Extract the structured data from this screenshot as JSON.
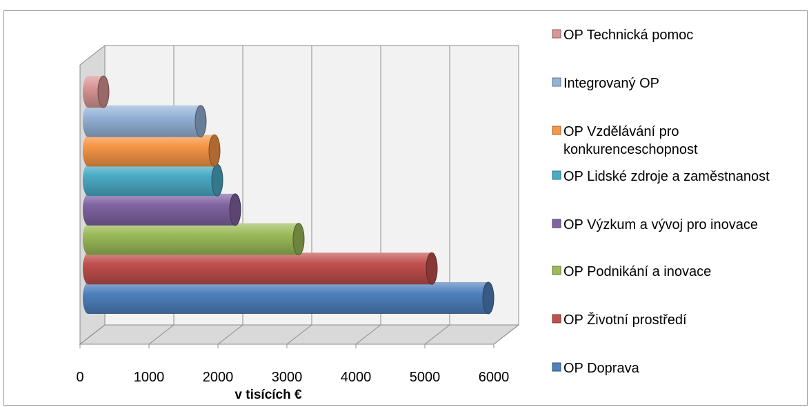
{
  "chart_data": {
    "type": "bar",
    "orientation": "horizontal",
    "style": "3d-cylinder",
    "categories": [
      "OP Doprava",
      "OP Životní prostředí",
      "OP Podnikání a inovace",
      "OP Výzkum a vývoj pro inovace",
      "OP Lidské zdroje a zaměstnanost",
      "OP Vzdělávání pro konkurenceschopnost",
      "Integrovaný OP",
      "OP Technická pomoc"
    ],
    "values": [
      5900,
      5080,
      3150,
      2230,
      1970,
      1930,
      1730,
      320
    ],
    "colors": [
      "#4f81bd",
      "#c0504d",
      "#9bbb59",
      "#8064a2",
      "#4bacc6",
      "#f79646",
      "#95b3d7",
      "#d99694"
    ],
    "xlabel": "v tisících €",
    "xlim": [
      0,
      6000
    ],
    "xticks": [
      "0",
      "1000",
      "2000",
      "3000",
      "4000",
      "5000",
      "6000"
    ],
    "grid": true,
    "legend_position": "right",
    "legend": [
      "OP Technická pomoc",
      "Integrovaný OP",
      "OP Vzdělávání pro konkurenceschopnost",
      "OP Lidské zdroje a zaměstnanost",
      "OP Výzkum a vývoj pro inovace",
      "OP Podnikání a inovace",
      "OP Životní prostředí",
      "OP Doprava"
    ]
  }
}
